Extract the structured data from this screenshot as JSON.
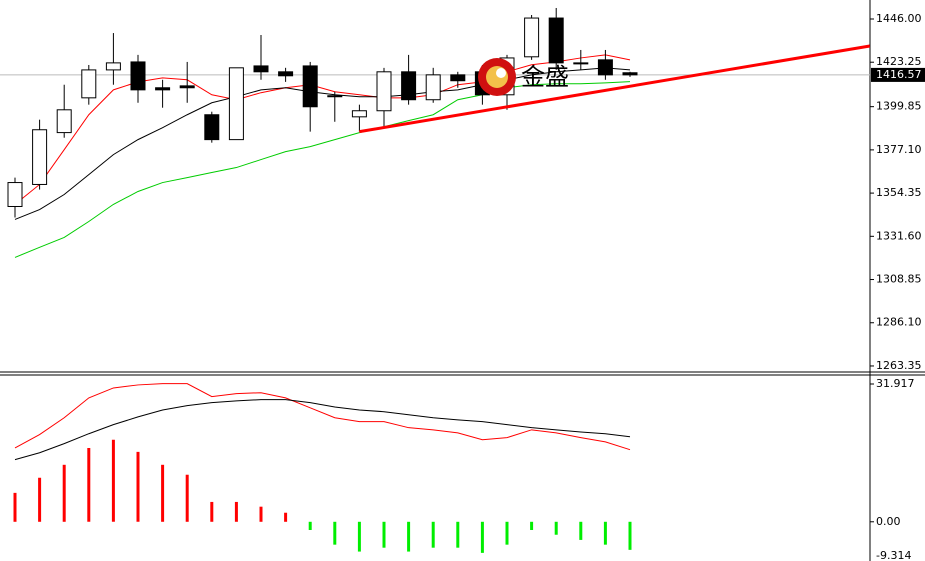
{
  "chart_data": [
    {
      "type": "candlestick",
      "watermark": "金盛",
      "open": [
        1347.3,
        1358.9,
        1386.2,
        1404.5,
        1419.2,
        1423.4,
        1409.8,
        1410.8,
        1395.6,
        1382.5,
        1421.3,
        1418.2,
        1421.3,
        1405.6,
        1394.5,
        1397.7,
        1418.2,
        1403.5,
        1416.6,
        1418.2,
        1406.1,
        1426.1,
        1446.5,
        1422.9,
        1424.5,
        1417.7
      ],
      "high": [
        1362.5,
        1393.0,
        1411.4,
        1421.8,
        1438.6,
        1427.1,
        1414.0,
        1423.4,
        1397.2,
        1420.3,
        1437.6,
        1420.3,
        1423.4,
        1407.7,
        1400.9,
        1420.3,
        1427.1,
        1420.3,
        1418.2,
        1421.8,
        1427.1,
        1448.1,
        1451.8,
        1429.7,
        1429.7,
        1418.2
      ],
      "low": [
        1341.5,
        1356.2,
        1383.5,
        1400.9,
        1411.4,
        1401.9,
        1399.3,
        1401.9,
        1380.9,
        1382.5,
        1414.0,
        1412.9,
        1386.7,
        1391.9,
        1386.7,
        1388.8,
        1400.9,
        1401.9,
        1409.8,
        1400.9,
        1398.2,
        1424.5,
        1419.2,
        1419.2,
        1414.0,
        1415.5
      ],
      "close": [
        1359.9,
        1387.7,
        1398.2,
        1419.2,
        1422.9,
        1408.7,
        1408.7,
        1409.8,
        1382.5,
        1420.3,
        1418.2,
        1416.1,
        1399.8,
        1405.6,
        1397.7,
        1418.2,
        1403.5,
        1416.6,
        1413.5,
        1406.1,
        1425.5,
        1446.5,
        1422.9,
        1422.9,
        1416.6,
        1416.6
      ],
      "series": [
        {
          "color": "#ff0000",
          "values": [
            1348.4,
            1358.9,
            1377.2,
            1395.6,
            1408.7,
            1412.9,
            1415.0,
            1414.0,
            1406.1,
            1403.5,
            1407.2,
            1409.8,
            1411.4,
            1407.7,
            1406.1,
            1404.5,
            1404.5,
            1406.1,
            1411.4,
            1412.9,
            1418.2,
            1421.9,
            1423.4,
            1425.5,
            1427.1,
            1424.5
          ]
        },
        {
          "color": "#000000",
          "values": [
            1340.5,
            1345.7,
            1353.6,
            1364.1,
            1374.6,
            1382.5,
            1388.8,
            1395.6,
            1401.9,
            1405.1,
            1408.7,
            1409.8,
            1407.7,
            1406.1,
            1405.1,
            1405.1,
            1406.1,
            1407.7,
            1408.7,
            1411.4,
            1414.0,
            1416.6,
            1418.2,
            1419.2,
            1420.3,
            1419.2
          ]
        },
        {
          "color": "#00cc00",
          "values": [
            1320.5,
            1325.8,
            1331.0,
            1339.4,
            1348.4,
            1355.2,
            1359.9,
            1362.5,
            1365.2,
            1367.8,
            1372.0,
            1376.2,
            1378.8,
            1382.5,
            1386.2,
            1389.3,
            1392.5,
            1395.6,
            1403.5,
            1406.1,
            1409.8,
            1411.4,
            1411.9,
            1411.9,
            1412.4,
            1413.0
          ]
        }
      ],
      "trendline": {
        "x": [
          14,
          34.75
        ],
        "values": [
          1386.7,
          1431.8
        ],
        "color": "#ff0000"
      },
      "current_price": 1416.57,
      "ylim": [
        1260.7,
        1456.0
      ],
      "yticks": [
        {
          "value": 1446,
          "label": "1446.00"
        },
        1423.25,
        1399.85,
        {
          "value": 1377.1,
          "label": "1377.10"
        },
        1354.35,
        {
          "value": 1331.6,
          "label": "1331.60"
        },
        1308.85,
        {
          "value": 1286.1,
          "label": "1286.10"
        },
        1263.35
      ]
    },
    {
      "type": "macd",
      "values": [
        6.7,
        10.2,
        13.2,
        17.1,
        19.0,
        16.2,
        13.2,
        10.9,
        4.6,
        4.6,
        3.5,
        2.1,
        -1.9,
        -5.3,
        -6.9,
        -6.0,
        -6.9,
        -6.0,
        -6.0,
        -7.2,
        -5.3,
        -1.9,
        -3.0,
        -4.2,
        -5.3,
        -6.5
      ],
      "color_positive": "#ff0000",
      "color_negative": "#00ee00",
      "series": [
        {
          "color": "#ff0000",
          "values": [
            17.1,
            20.2,
            24.1,
            28.7,
            31.0,
            31.7,
            32.0,
            32.0,
            29.0,
            29.7,
            29.9,
            28.7,
            26.4,
            24.1,
            23.2,
            23.2,
            21.8,
            21.3,
            20.6,
            19.0,
            19.5,
            21.3,
            20.6,
            19.5,
            18.5,
            16.7
          ]
        },
        {
          "color": "#000000",
          "values": [
            14.4,
            16.0,
            18.1,
            20.4,
            22.5,
            24.3,
            25.9,
            26.9,
            27.6,
            28.0,
            28.3,
            28.3,
            27.6,
            26.6,
            25.9,
            25.5,
            24.8,
            24.1,
            23.6,
            23.2,
            22.5,
            21.8,
            21.3,
            20.8,
            20.4,
            19.7
          ]
        }
      ],
      "ylim": [
        -9.314,
        33.77
      ],
      "yticks": [
        31.917,
        {
          "value": 0,
          "label": "0.00"
        },
        -9.314
      ]
    }
  ]
}
